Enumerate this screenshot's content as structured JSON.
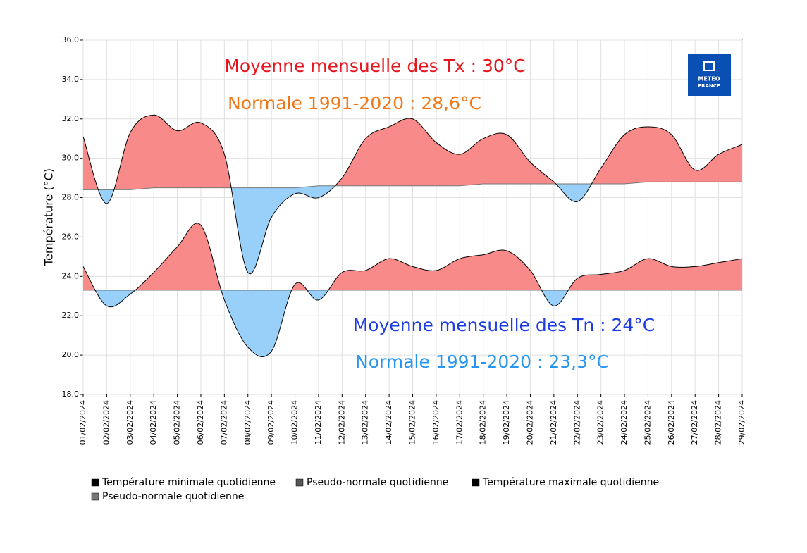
{
  "chart_data": {
    "type": "area",
    "ylabel": "Température (°C)",
    "logo": [
      "METEO",
      "FRANCE"
    ],
    "categories": [
      "01/02/2024",
      "02/02/2024",
      "03/02/2024",
      "04/02/2024",
      "05/02/2024",
      "06/02/2024",
      "07/02/2024",
      "08/02/2024",
      "09/02/2024",
      "10/02/2024",
      "11/02/2024",
      "12/02/2024",
      "13/02/2024",
      "14/02/2024",
      "15/02/2024",
      "16/02/2024",
      "17/02/2024",
      "18/02/2024",
      "19/02/2024",
      "20/02/2024",
      "21/02/2024",
      "22/02/2024",
      "23/02/2024",
      "24/02/2024",
      "25/02/2024",
      "26/02/2024",
      "27/02/2024",
      "28/02/2024",
      "29/02/2024"
    ],
    "series": [
      {
        "name": "Température minimale quotidienne",
        "color": "#000000",
        "values": [
          24.5,
          22.5,
          23.1,
          24.2,
          25.5,
          26.6,
          22.8,
          20.4,
          20.2,
          23.6,
          22.8,
          24.2,
          24.3,
          24.9,
          24.5,
          24.3,
          24.9,
          25.1,
          25.3,
          24.3,
          22.5,
          23.9,
          24.1,
          24.3,
          24.9,
          24.5,
          24.5,
          24.7,
          24.9
        ]
      },
      {
        "name": "Pseudo-normale quotidienne",
        "color": "#555555",
        "values": [
          23.3,
          23.3,
          23.3,
          23.3,
          23.3,
          23.3,
          23.3,
          23.3,
          23.3,
          23.3,
          23.3,
          23.3,
          23.3,
          23.3,
          23.3,
          23.3,
          23.3,
          23.3,
          23.3,
          23.3,
          23.3,
          23.3,
          23.3,
          23.3,
          23.3,
          23.3,
          23.3,
          23.3,
          23.3
        ]
      },
      {
        "name": "Température maximale quotidienne",
        "color": "#000000",
        "values": [
          31.1,
          27.7,
          31.3,
          32.2,
          31.4,
          31.8,
          30.2,
          24.2,
          27.0,
          28.2,
          28.0,
          29.0,
          31.0,
          31.6,
          32.0,
          30.8,
          30.2,
          31.0,
          31.2,
          29.8,
          28.8,
          27.8,
          29.5,
          31.2,
          31.6,
          31.2,
          29.4,
          30.2,
          30.7
        ]
      },
      {
        "name": "Pseudo-normale quotidienne",
        "color": "#777777",
        "values": [
          28.4,
          28.4,
          28.4,
          28.5,
          28.5,
          28.5,
          28.5,
          28.5,
          28.5,
          28.5,
          28.6,
          28.6,
          28.6,
          28.6,
          28.6,
          28.6,
          28.6,
          28.7,
          28.7,
          28.7,
          28.7,
          28.7,
          28.7,
          28.7,
          28.8,
          28.8,
          28.8,
          28.8,
          28.8
        ]
      }
    ],
    "fill_above": "#f88a8a",
    "fill_below": "#99d0fa",
    "ylim": [
      18,
      36
    ],
    "yticks": [
      {
        "value": 18,
        "label": "18.0"
      },
      {
        "value": 20,
        "label": "20.0"
      },
      {
        "value": 22,
        "label": "22.0"
      },
      {
        "value": 24,
        "label": "24.0"
      },
      {
        "value": 26,
        "label": "26.0"
      },
      {
        "value": 28,
        "label": "28.0"
      },
      {
        "value": 30,
        "label": "30.0"
      },
      {
        "value": 32,
        "label": "32.0"
      },
      {
        "value": 34,
        "label": "34.0"
      },
      {
        "value": 36,
        "label": "36.0"
      }
    ],
    "grid": true,
    "annotations": [
      {
        "text": "Moyenne mensuelle des Tx : 30°C",
        "color": "#e8141e"
      },
      {
        "text": "Normale 1991-2020 : 28,6°C",
        "color": "#f07818"
      },
      {
        "text": "Moyenne mensuelle des Tn : 24°C",
        "color": "#1e3ce6"
      },
      {
        "text": "Normale 1991-2020 : 23,3°C",
        "color": "#2896f0"
      }
    ]
  }
}
